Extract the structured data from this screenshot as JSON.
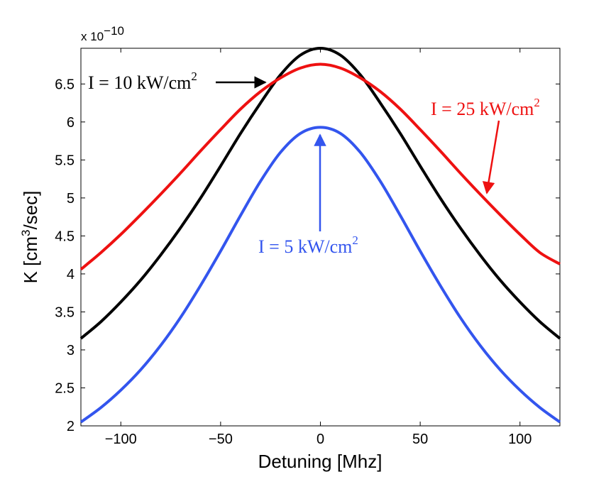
{
  "chart_data": {
    "type": "line",
    "title": "",
    "xlabel": "Detuning [Mhz]",
    "ylabel_parts": {
      "pre": "K [cm",
      "sup": "3",
      "post": "/sec]"
    },
    "exponent_label": {
      "base": "x 10",
      "sup": "−10"
    },
    "xlim": [
      -120,
      120
    ],
    "ylim": [
      2.0,
      6.97
    ],
    "x_ticks": [
      -100,
      -50,
      0,
      50,
      100
    ],
    "x_tick_labels": [
      "−100",
      "−50",
      "0",
      "50",
      "100"
    ],
    "y_ticks": [
      2,
      2.5,
      3,
      3.5,
      4,
      4.5,
      5,
      5.5,
      6,
      6.5
    ],
    "y_tick_labels": [
      "2",
      "2.5",
      "3",
      "3.5",
      "4",
      "4.5",
      "5",
      "5.5",
      "6",
      "6.5"
    ],
    "grid": false,
    "series": [
      {
        "name": "I = 10 kW/cm2",
        "color": "#000000",
        "x": [
          -120,
          -110,
          -100,
          -90,
          -80,
          -70,
          -60,
          -50,
          -40,
          -30,
          -20,
          -10,
          0,
          10,
          20,
          30,
          40,
          50,
          60,
          70,
          80,
          90,
          100,
          110,
          120
        ],
        "values": [
          3.15,
          3.37,
          3.63,
          3.92,
          4.25,
          4.61,
          5.0,
          5.42,
          5.85,
          6.25,
          6.62,
          6.88,
          6.97,
          6.88,
          6.62,
          6.25,
          5.85,
          5.42,
          5.0,
          4.61,
          4.25,
          3.92,
          3.63,
          3.37,
          3.15
        ]
      },
      {
        "name": "I = 25 kW/cm2",
        "color": "#ee1111",
        "x": [
          -120,
          -110,
          -100,
          -90,
          -80,
          -70,
          -60,
          -50,
          -40,
          -30,
          -20,
          -10,
          0,
          10,
          20,
          30,
          40,
          50,
          60,
          70,
          80,
          90,
          100,
          110,
          120
        ],
        "values": [
          4.06,
          4.28,
          4.52,
          4.78,
          5.05,
          5.33,
          5.62,
          5.9,
          6.17,
          6.4,
          6.58,
          6.71,
          6.76,
          6.71,
          6.58,
          6.4,
          6.17,
          5.9,
          5.62,
          5.33,
          5.05,
          4.78,
          4.52,
          4.28,
          4.13
        ]
      },
      {
        "name": "I = 5 kW/cm2",
        "color": "#3355ee",
        "x": [
          -120,
          -110,
          -100,
          -90,
          -80,
          -70,
          -60,
          -50,
          -40,
          -30,
          -20,
          -10,
          0,
          10,
          20,
          30,
          40,
          50,
          60,
          70,
          80,
          90,
          100,
          110,
          120
        ],
        "values": [
          2.05,
          2.24,
          2.47,
          2.74,
          3.06,
          3.43,
          3.85,
          4.3,
          4.77,
          5.22,
          5.6,
          5.85,
          5.93,
          5.85,
          5.6,
          5.22,
          4.77,
          4.3,
          3.85,
          3.43,
          3.06,
          2.74,
          2.47,
          2.24,
          2.05
        ]
      }
    ],
    "annotations": [
      {
        "name": "annot-10",
        "pre": "I = 10 kW/cm",
        "sup": "2",
        "color": "#000000"
      },
      {
        "name": "annot-25",
        "pre": "I = 25 kW/cm",
        "sup": "2",
        "color": "#ee1111"
      },
      {
        "name": "annot-5",
        "pre": "I = 5 kW/cm",
        "sup": "2",
        "color": "#3355ee"
      }
    ]
  }
}
